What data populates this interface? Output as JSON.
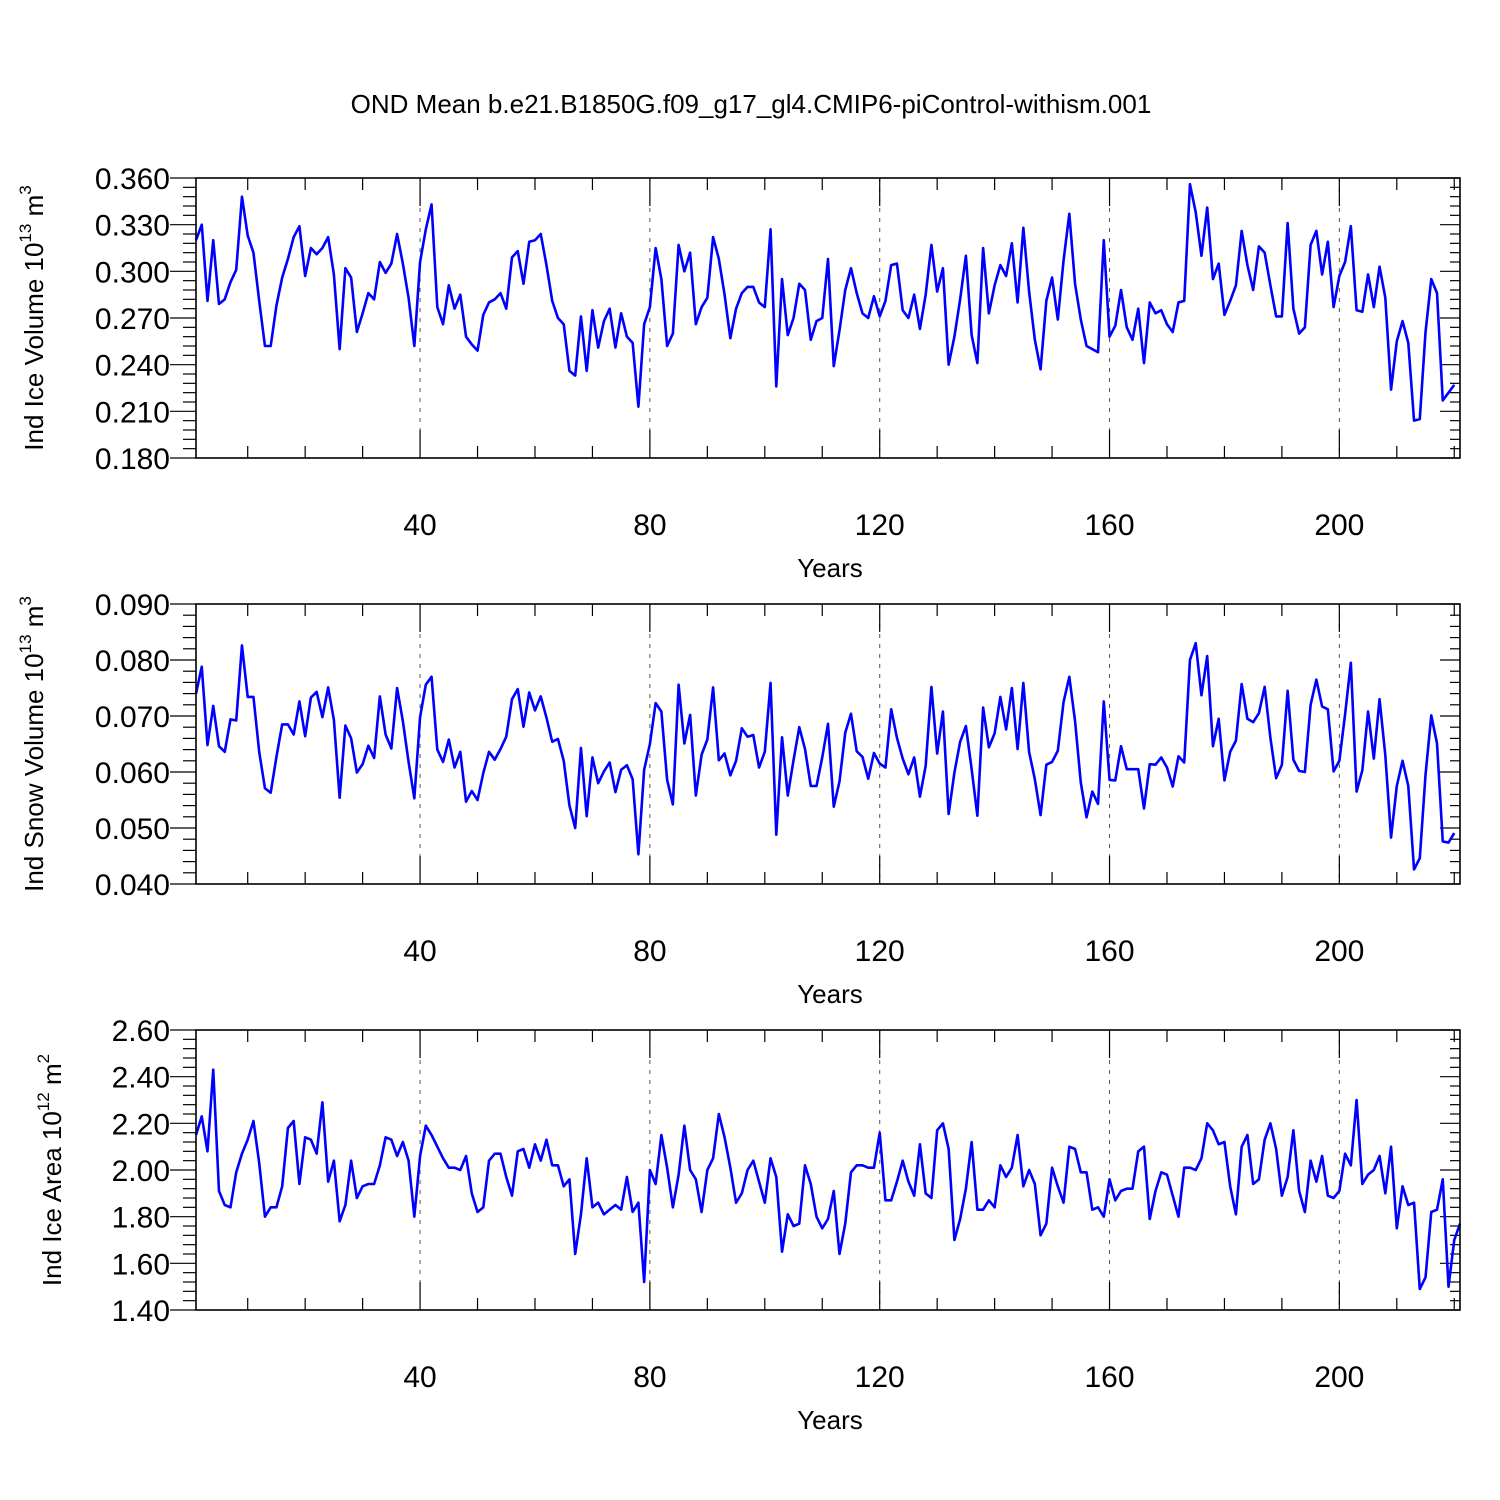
{
  "chart_data": {
    "title": "OND Mean b.e21.B1850G.f09_g17_gl4.CMIP6-piControl-withism.001",
    "line_color": "#0000ff",
    "panels": [
      {
        "type": "line",
        "ylabel": "Ind Ice Volume 10",
        "ylabel_exp": "13",
        "ylabel_unit": " m",
        "ylabel_unit_exp": "3",
        "xlabel": "Years",
        "xlim": [
          1,
          221
        ],
        "ylim": [
          0.18,
          0.36
        ],
        "yticks": [
          "0.180",
          "0.210",
          "0.240",
          "0.270",
          "0.300",
          "0.330",
          "0.360"
        ],
        "xticks": [
          40,
          80,
          120,
          160,
          200
        ],
        "grid_x": "dashed",
        "x_start": 1,
        "values": [
          0.32,
          0.33,
          0.281,
          0.32,
          0.279,
          0.282,
          0.293,
          0.301,
          0.348,
          0.323,
          0.312,
          0.281,
          0.252,
          0.252,
          0.278,
          0.296,
          0.308,
          0.322,
          0.329,
          0.297,
          0.315,
          0.311,
          0.315,
          0.322,
          0.298,
          0.25,
          0.302,
          0.296,
          0.261,
          0.273,
          0.286,
          0.282,
          0.306,
          0.299,
          0.305,
          0.324,
          0.305,
          0.283,
          0.252,
          0.306,
          0.327,
          0.343,
          0.277,
          0.266,
          0.291,
          0.276,
          0.285,
          0.258,
          0.253,
          0.249,
          0.272,
          0.28,
          0.282,
          0.286,
          0.276,
          0.309,
          0.313,
          0.292,
          0.319,
          0.32,
          0.324,
          0.304,
          0.281,
          0.27,
          0.266,
          0.236,
          0.233,
          0.271,
          0.236,
          0.275,
          0.251,
          0.268,
          0.276,
          0.251,
          0.273,
          0.258,
          0.254,
          0.213,
          0.266,
          0.277,
          0.315,
          0.295,
          0.252,
          0.26,
          0.317,
          0.3,
          0.312,
          0.266,
          0.277,
          0.283,
          0.322,
          0.308,
          0.285,
          0.257,
          0.276,
          0.286,
          0.29,
          0.29,
          0.28,
          0.277,
          0.327,
          0.226,
          0.295,
          0.259,
          0.27,
          0.292,
          0.288,
          0.256,
          0.268,
          0.27,
          0.308,
          0.239,
          0.262,
          0.288,
          0.302,
          0.286,
          0.273,
          0.27,
          0.284,
          0.271,
          0.281,
          0.304,
          0.305,
          0.275,
          0.27,
          0.285,
          0.263,
          0.285,
          0.317,
          0.287,
          0.302,
          0.24,
          0.258,
          0.282,
          0.31,
          0.259,
          0.241,
          0.315,
          0.273,
          0.291,
          0.304,
          0.297,
          0.318,
          0.28,
          0.328,
          0.287,
          0.256,
          0.237,
          0.281,
          0.296,
          0.269,
          0.307,
          0.337,
          0.292,
          0.269,
          0.252,
          0.25,
          0.248,
          0.32,
          0.258,
          0.265,
          0.288,
          0.264,
          0.256,
          0.276,
          0.241,
          0.28,
          0.273,
          0.275,
          0.266,
          0.261,
          0.28,
          0.281,
          0.356,
          0.338,
          0.31,
          0.341,
          0.295,
          0.305,
          0.272,
          0.281,
          0.291,
          0.326,
          0.304,
          0.288,
          0.316,
          0.312,
          0.291,
          0.271,
          0.271,
          0.331,
          0.276,
          0.26,
          0.264,
          0.317,
          0.326,
          0.298,
          0.319,
          0.277,
          0.297,
          0.306,
          0.329,
          0.275,
          0.274,
          0.298,
          0.277,
          0.303,
          0.283,
          0.224,
          0.255,
          0.268,
          0.254,
          0.204,
          0.205,
          0.261,
          0.295,
          0.286,
          0.217,
          0.222,
          0.227
        ]
      },
      {
        "type": "line",
        "ylabel": "Ind Snow Volume 10",
        "ylabel_exp": "13",
        "ylabel_unit": " m",
        "ylabel_unit_exp": "3",
        "xlabel": "Years",
        "xlim": [
          1,
          221
        ],
        "ylim": [
          0.04,
          0.09
        ],
        "yticks": [
          "0.040",
          "0.050",
          "0.060",
          "0.070",
          "0.080",
          "0.090"
        ],
        "xticks": [
          40,
          80,
          120,
          160,
          200
        ],
        "grid_x": "dashed",
        "x_start": 1,
        "values": [
          0.074,
          0.0788,
          0.0648,
          0.0718,
          0.0646,
          0.0636,
          0.0694,
          0.0692,
          0.0826,
          0.0734,
          0.0734,
          0.0636,
          0.0571,
          0.0563,
          0.0627,
          0.0685,
          0.0685,
          0.0667,
          0.0726,
          0.0664,
          0.0733,
          0.0743,
          0.0698,
          0.0751,
          0.0693,
          0.0554,
          0.0683,
          0.066,
          0.0599,
          0.0614,
          0.0647,
          0.0625,
          0.0735,
          0.0667,
          0.0642,
          0.075,
          0.0691,
          0.0618,
          0.0553,
          0.0698,
          0.0756,
          0.077,
          0.064,
          0.0618,
          0.0658,
          0.0608,
          0.0636,
          0.0547,
          0.0566,
          0.055,
          0.0598,
          0.0636,
          0.0622,
          0.0641,
          0.0663,
          0.073,
          0.0748,
          0.0681,
          0.0742,
          0.071,
          0.0735,
          0.0697,
          0.0654,
          0.0659,
          0.062,
          0.054,
          0.05,
          0.0643,
          0.0521,
          0.0626,
          0.058,
          0.0601,
          0.0617,
          0.0564,
          0.0604,
          0.0612,
          0.0587,
          0.0453,
          0.0604,
          0.065,
          0.0723,
          0.0708,
          0.0586,
          0.0542,
          0.0756,
          0.0651,
          0.0702,
          0.0558,
          0.0631,
          0.0658,
          0.0751,
          0.0621,
          0.0633,
          0.0594,
          0.062,
          0.0678,
          0.0663,
          0.0666,
          0.0608,
          0.0636,
          0.0759,
          0.0488,
          0.0662,
          0.0558,
          0.0621,
          0.068,
          0.0641,
          0.0575,
          0.0575,
          0.0626,
          0.0686,
          0.0538,
          0.0583,
          0.067,
          0.0704,
          0.0637,
          0.0627,
          0.0588,
          0.0634,
          0.0615,
          0.0608,
          0.0712,
          0.0661,
          0.0624,
          0.0596,
          0.0626,
          0.0556,
          0.0611,
          0.0752,
          0.0633,
          0.0708,
          0.0525,
          0.0599,
          0.0654,
          0.0682,
          0.0605,
          0.0522,
          0.0715,
          0.0644,
          0.0669,
          0.0734,
          0.0676,
          0.075,
          0.0641,
          0.0759,
          0.0636,
          0.0587,
          0.0523,
          0.0613,
          0.0618,
          0.0638,
          0.0725,
          0.077,
          0.0691,
          0.0581,
          0.0519,
          0.0565,
          0.0543,
          0.0726,
          0.0586,
          0.0585,
          0.0646,
          0.0605,
          0.0605,
          0.0605,
          0.0535,
          0.0614,
          0.0613,
          0.0626,
          0.0608,
          0.0574,
          0.0628,
          0.0617,
          0.08,
          0.083,
          0.0737,
          0.0807,
          0.0646,
          0.0695,
          0.0585,
          0.0636,
          0.0656,
          0.0757,
          0.0695,
          0.0689,
          0.0705,
          0.0752,
          0.0661,
          0.0589,
          0.0613,
          0.0745,
          0.0622,
          0.0602,
          0.06,
          0.072,
          0.0765,
          0.0717,
          0.0712,
          0.0601,
          0.062,
          0.0703,
          0.0795,
          0.0565,
          0.0603,
          0.0708,
          0.0624,
          0.073,
          0.063,
          0.0483,
          0.0575,
          0.062,
          0.0575,
          0.0426,
          0.0446,
          0.0595,
          0.0701,
          0.0651,
          0.0476,
          0.0474,
          0.0491
        ]
      },
      {
        "type": "line",
        "ylabel": "Ind Ice Area 10",
        "ylabel_exp": "12",
        "ylabel_unit": " m",
        "ylabel_unit_exp": "2",
        "xlabel": "Years",
        "xlim": [
          1,
          221
        ],
        "ylim": [
          1.4,
          2.6
        ],
        "yticks": [
          "1.40",
          "1.60",
          "1.80",
          "2.00",
          "2.20",
          "2.40",
          "2.60"
        ],
        "xticks": [
          40,
          80,
          120,
          160,
          200
        ],
        "grid_x": "dashed",
        "x_start": 1,
        "values": [
          2.15,
          2.23,
          2.08,
          2.43,
          1.91,
          1.85,
          1.84,
          1.99,
          2.07,
          2.13,
          2.21,
          2.03,
          1.8,
          1.84,
          1.84,
          1.93,
          2.18,
          2.21,
          1.94,
          2.14,
          2.13,
          2.07,
          2.29,
          1.95,
          2.04,
          1.78,
          1.85,
          2.04,
          1.88,
          1.93,
          1.94,
          1.94,
          2.02,
          2.14,
          2.13,
          2.06,
          2.12,
          2.04,
          1.8,
          2.06,
          2.19,
          2.15,
          2.1,
          2.05,
          2.01,
          2.01,
          2.0,
          2.06,
          1.9,
          1.82,
          1.84,
          2.04,
          2.07,
          2.07,
          1.97,
          1.89,
          2.08,
          2.09,
          2.01,
          2.11,
          2.04,
          2.13,
          2.02,
          2.02,
          1.93,
          1.96,
          1.64,
          1.81,
          2.05,
          1.84,
          1.86,
          1.81,
          1.83,
          1.85,
          1.83,
          1.97,
          1.82,
          1.86,
          1.52,
          2.0,
          1.94,
          2.15,
          2.01,
          1.84,
          1.98,
          2.19,
          2.0,
          1.96,
          1.82,
          2.0,
          2.05,
          2.24,
          2.14,
          2.01,
          1.86,
          1.9,
          2.0,
          2.04,
          1.95,
          1.86,
          2.05,
          1.97,
          1.65,
          1.81,
          1.76,
          1.77,
          2.02,
          1.94,
          1.8,
          1.75,
          1.79,
          1.91,
          1.64,
          1.77,
          1.99,
          2.02,
          2.02,
          2.01,
          2.01,
          2.16,
          1.87,
          1.87,
          1.95,
          2.04,
          1.95,
          1.89,
          2.11,
          1.9,
          1.88,
          2.17,
          2.2,
          2.09,
          1.7,
          1.79,
          1.92,
          2.12,
          1.83,
          1.83,
          1.87,
          1.84,
          2.02,
          1.97,
          2.01,
          2.15,
          1.93,
          2.0,
          1.94,
          1.72,
          1.77,
          2.01,
          1.93,
          1.86,
          2.1,
          2.09,
          1.99,
          1.99,
          1.83,
          1.84,
          1.8,
          1.96,
          1.87,
          1.91,
          1.92,
          1.92,
          2.08,
          2.1,
          1.79,
          1.91,
          1.99,
          1.98,
          1.89,
          1.8,
          2.01,
          2.01,
          2.0,
          2.05,
          2.2,
          2.17,
          2.11,
          2.12,
          1.93,
          1.81,
          2.1,
          2.15,
          1.94,
          1.96,
          2.13,
          2.2,
          2.09,
          1.89,
          1.97,
          2.17,
          1.91,
          1.82,
          2.04,
          1.95,
          2.06,
          1.89,
          1.88,
          1.91,
          2.07,
          2.02,
          2.3,
          1.94,
          1.98,
          2.0,
          2.06,
          1.9,
          2.1,
          1.75,
          1.93,
          1.85,
          1.86,
          1.49,
          1.54,
          1.82,
          1.83,
          1.96,
          1.5,
          1.7,
          1.77
        ]
      }
    ]
  }
}
